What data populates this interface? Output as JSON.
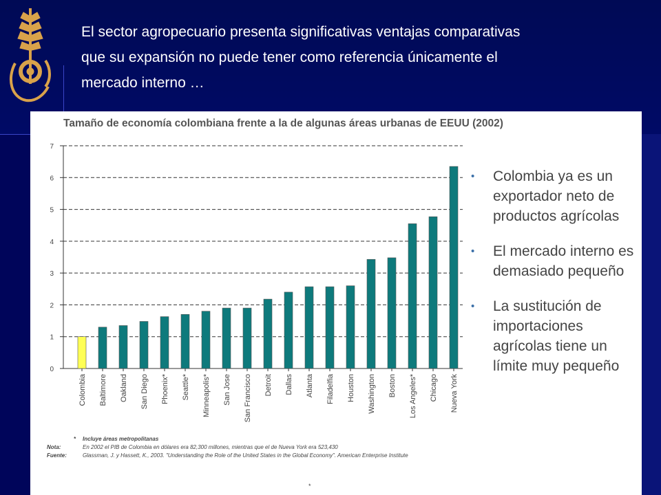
{
  "heading": {
    "lines": [
      "El sector agropecuario presenta significativas ventajas comparativas",
      "que su expansión no puede tener como referencia únicamente el",
      "mercado interno …"
    ]
  },
  "chart_data": {
    "type": "bar",
    "title": "Tamaño de economía colombiana frente a la de algunas áreas urbanas de EEUU (2002)",
    "categories": [
      "Colombia",
      "Baltimore",
      "Oakland",
      "San Diego",
      "Phoenix*",
      "Seattle*",
      "Minneapolis*",
      "San Jose",
      "San Francisco",
      "Detroit",
      "Dallas",
      "Atlanta",
      "Filadelfia",
      "Houston",
      "Washington",
      "Boston",
      "Los Angeles*",
      "Chicago",
      "Nueva York"
    ],
    "values": [
      1.0,
      1.3,
      1.35,
      1.48,
      1.63,
      1.7,
      1.8,
      1.9,
      1.9,
      2.18,
      2.4,
      2.57,
      2.57,
      2.6,
      3.43,
      3.48,
      4.55,
      4.77,
      6.35
    ],
    "highlight_category": "Colombia",
    "colors": {
      "bar": "#0e7a7c",
      "highlight": "#ffff55",
      "grid": "#333333",
      "axis": "#333333",
      "ticks": "#444444"
    },
    "ylim": [
      0,
      7
    ],
    "yticks": [
      0,
      1,
      2,
      3,
      4,
      5,
      6,
      7
    ],
    "grid": "dashed-horizontal"
  },
  "bullets": [
    "Colombia ya es un exportador neto de productos agrícolas",
    "El mercado interno es demasiado pequeño",
    "La sustitución de importaciones agrícolas tiene un límite muy pequeño"
  ],
  "notes": [
    {
      "key": "*",
      "text": "Incluye áreas metropolitanas"
    },
    {
      "key": "Nota:",
      "text": "En 2002 el PIB de Colombia en dólares era 82,300 millones, mientras que el de Nueva York era 523,430"
    },
    {
      "key": "Fuente:",
      "text": "Glassman, J. y Hassett, K., 2003. \"Understanding the Role of the United States in the Global Economy\". American Enterprise Institute"
    }
  ],
  "footer_mark": "*"
}
